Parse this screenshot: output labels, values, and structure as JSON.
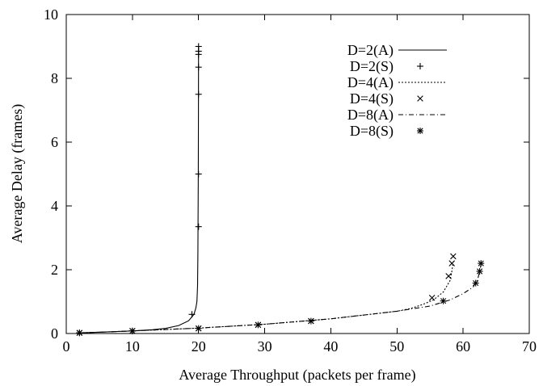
{
  "chart_data": {
    "type": "line",
    "xlabel": "Average Throughput (packets per frame)",
    "ylabel": "Average Delay (frames)",
    "xlim": [
      0,
      70
    ],
    "ylim": [
      0,
      10
    ],
    "xticks": [
      "0",
      "10",
      "20",
      "30",
      "40",
      "50",
      "60",
      "70"
    ],
    "yticks": [
      "0",
      "2",
      "4",
      "6",
      "8",
      "10"
    ],
    "grid": false,
    "legend_position": "top-right",
    "series": [
      {
        "name": "D=2(A)",
        "kind": "line",
        "dash": "solid",
        "x": [
          2,
          5,
          10,
          13,
          15,
          17,
          18.5,
          19.3,
          19.6,
          19.75,
          19.85,
          19.9,
          19.93,
          19.96,
          19.98,
          20
        ],
        "y": [
          0.02,
          0.04,
          0.08,
          0.12,
          0.16,
          0.25,
          0.4,
          0.6,
          0.8,
          1.0,
          1.5,
          2.5,
          3.5,
          5.0,
          7.0,
          9.0
        ]
      },
      {
        "name": "D=2(S)",
        "kind": "markers",
        "marker": "plus",
        "x": [
          2,
          10,
          19,
          20,
          20,
          20,
          20,
          20,
          20,
          20
        ],
        "y": [
          0.02,
          0.08,
          0.6,
          3.35,
          5.0,
          7.5,
          8.35,
          8.75,
          8.85,
          9.0
        ]
      },
      {
        "name": "D=4(A)",
        "kind": "line",
        "dash": "dotted",
        "x": [
          2,
          10,
          20,
          30,
          40,
          50,
          52,
          54,
          55.5,
          57,
          58,
          58.3,
          58.5
        ],
        "y": [
          0.02,
          0.08,
          0.17,
          0.29,
          0.46,
          0.7,
          0.78,
          0.92,
          1.05,
          1.3,
          1.65,
          1.95,
          2.25
        ]
      },
      {
        "name": "D=4(S)",
        "kind": "markers",
        "marker": "cross",
        "x": [
          2,
          10,
          20,
          29,
          37,
          55.3,
          57.8,
          58.3,
          58.5
        ],
        "y": [
          0.02,
          0.08,
          0.16,
          0.27,
          0.39,
          1.12,
          1.8,
          2.2,
          2.42
        ]
      },
      {
        "name": "D=8(A)",
        "kind": "line",
        "dash": "dashdot",
        "x": [
          2,
          10,
          20,
          30,
          40,
          50,
          55,
          58,
          60,
          61.5,
          62.2,
          62.5,
          62.7
        ],
        "y": [
          0.02,
          0.08,
          0.17,
          0.29,
          0.46,
          0.7,
          0.86,
          1.05,
          1.25,
          1.45,
          1.7,
          1.95,
          2.15
        ]
      },
      {
        "name": "D=8(S)",
        "kind": "markers",
        "marker": "asterisk",
        "x": [
          2,
          10,
          20,
          29,
          37,
          57,
          61.9,
          62.5,
          62.7
        ],
        "y": [
          0.02,
          0.08,
          0.16,
          0.27,
          0.39,
          1.02,
          1.58,
          1.95,
          2.2
        ]
      }
    ]
  }
}
